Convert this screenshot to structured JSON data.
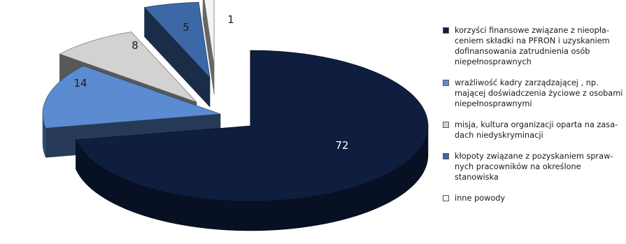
{
  "chart_data": {
    "type": "pie",
    "title": "",
    "legend_position": "right",
    "slices": [
      {
        "label": "korzyści finansowe związane z nieopła-ceniem składki na PFRON i uzyskaniem dofinansowania zatrudnienia osób niepełnosprawnych",
        "lines": [
          "korzyści finansowe związane z nieopła-",
          "ceniem składki na PFRON i uzyskaniem",
          "dofinansowania zatrudnienia osób",
          "niepełnosprawnych"
        ],
        "value": 72,
        "color": "#0f1d3f",
        "text_color": "#ffffff"
      },
      {
        "label": "wrażliwość kadry zarządzającej , np. mającej doświadczenia życiowe z osobami niepełnosprawnymi",
        "lines": [
          "wrażliwość kadry zarządzającej , np.",
          "mającej doświadczenia życiowe z osobami",
          "niepełnosprawnymi"
        ],
        "value": 14,
        "color": "#5b8bd0",
        "text_color": "#1a1a1a"
      },
      {
        "label": "misja, kultura organizacji oparta na zasa-dach niedyskryminacji",
        "lines": [
          "misja, kultura organizacji oparta na zasa-",
          "dach niedyskryminacji"
        ],
        "value": 8,
        "color": "#d2d2d2",
        "text_color": "#1a1a1a"
      },
      {
        "label": "kłopoty związane z pozyskaniem spraw-nych pracowników na określone stanowiska",
        "lines": [
          "kłopoty związane z pozyskaniem spraw-",
          "nych pracowników na określone stanowiska"
        ],
        "value": 5,
        "color": "#3d68a8",
        "text_color": "#1a1a1a"
      },
      {
        "label": "inne powody",
        "lines": [
          "inne powody"
        ],
        "value": 1,
        "color": "#f4f4f4",
        "text_color": "#1a1a1a"
      }
    ]
  }
}
